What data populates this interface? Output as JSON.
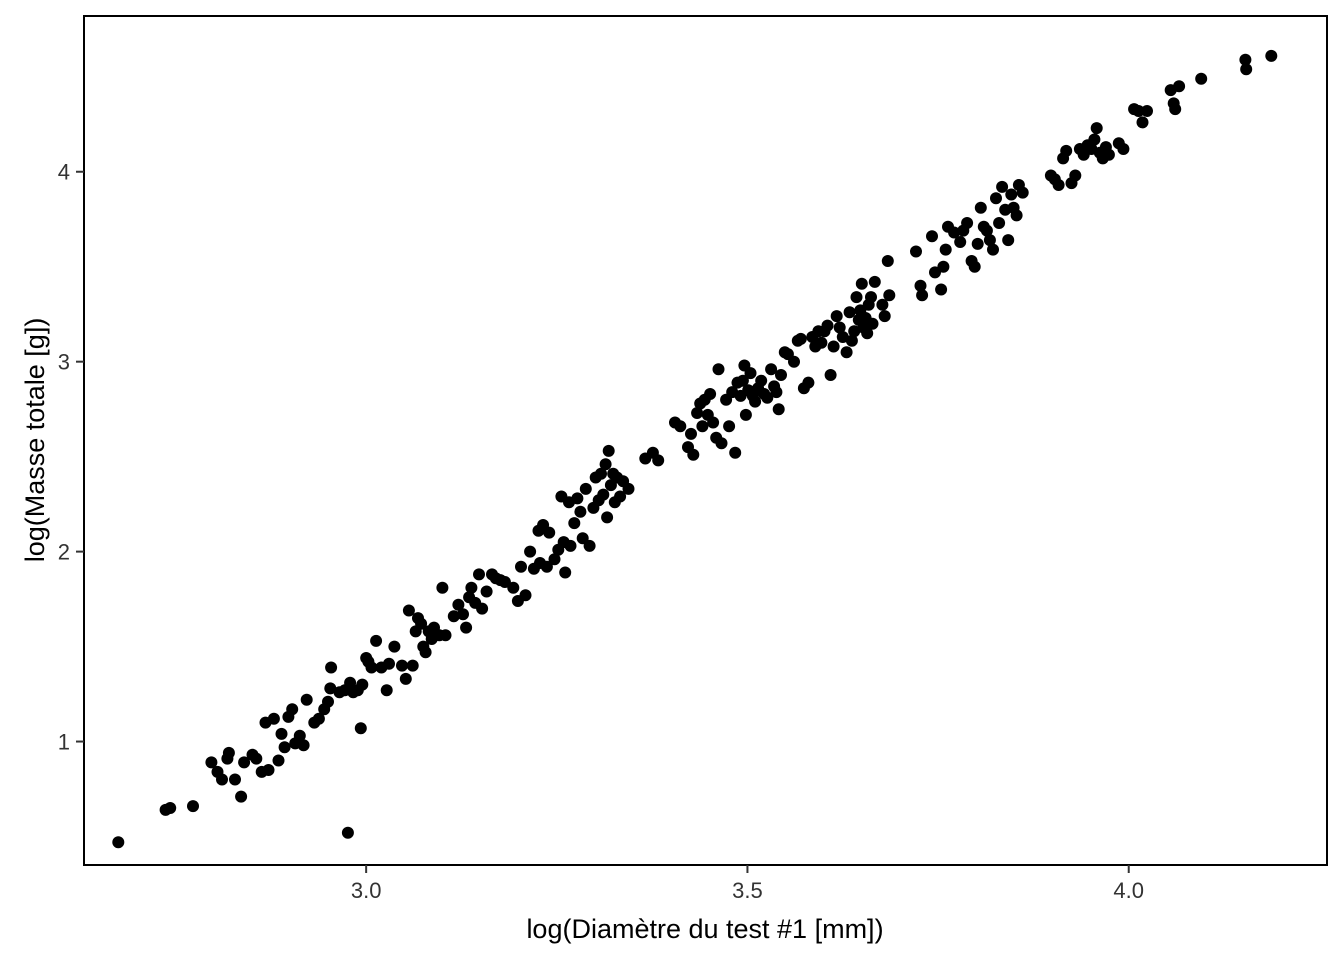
{
  "chart_data": {
    "type": "scatter",
    "title": "",
    "xlabel": "log(Diamètre du test #1  [mm])",
    "ylabel": "log(Masse totale  [g])",
    "xlim": [
      2.63,
      4.26
    ],
    "ylim": [
      0.35,
      4.82
    ],
    "x_ticks": [
      3.0,
      3.5,
      4.0
    ],
    "x_tick_labels": [
      "3.0",
      "3.5",
      "4.0"
    ],
    "y_ticks": [
      1,
      2,
      3,
      4
    ],
    "y_tick_labels": [
      "1",
      "2",
      "3",
      "4"
    ],
    "grid": false,
    "legend": "none",
    "point_color": "#000000",
    "points": [
      [
        2.675,
        0.47
      ],
      [
        2.737,
        0.64
      ],
      [
        2.743,
        0.65
      ],
      [
        2.773,
        0.66
      ],
      [
        2.797,
        0.89
      ],
      [
        2.805,
        0.84
      ],
      [
        2.811,
        0.8
      ],
      [
        2.818,
        0.91
      ],
      [
        2.82,
        0.94
      ],
      [
        2.828,
        0.8
      ],
      [
        2.836,
        0.71
      ],
      [
        2.84,
        0.89
      ],
      [
        2.851,
        0.93
      ],
      [
        2.856,
        0.91
      ],
      [
        2.863,
        0.84
      ],
      [
        2.868,
        1.1
      ],
      [
        2.872,
        0.85
      ],
      [
        2.879,
        1.12
      ],
      [
        2.885,
        0.9
      ],
      [
        2.889,
        1.04
      ],
      [
        2.893,
        0.97
      ],
      [
        2.898,
        1.13
      ],
      [
        2.903,
        1.17
      ],
      [
        2.907,
        0.99
      ],
      [
        2.913,
        1.03
      ],
      [
        2.918,
        0.98
      ],
      [
        2.922,
        1.22
      ],
      [
        2.932,
        1.1
      ],
      [
        2.938,
        1.12
      ],
      [
        2.945,
        1.17
      ],
      [
        2.95,
        1.21
      ],
      [
        2.953,
        1.28
      ],
      [
        2.954,
        1.39
      ],
      [
        2.965,
        1.26
      ],
      [
        2.972,
        1.27
      ],
      [
        2.979,
        1.31
      ],
      [
        2.983,
        1.26
      ],
      [
        2.989,
        1.27
      ],
      [
        2.995,
        1.3
      ],
      [
        3.0,
        1.44
      ],
      [
        3.003,
        1.42
      ],
      [
        3.007,
        1.39
      ],
      [
        3.013,
        1.53
      ],
      [
        3.02,
        1.39
      ],
      [
        3.027,
        1.27
      ],
      [
        3.03,
        1.41
      ],
      [
        3.037,
        1.5
      ],
      [
        3.047,
        1.4
      ],
      [
        3.052,
        1.33
      ],
      [
        3.056,
        1.69
      ],
      [
        3.061,
        1.4
      ],
      [
        3.065,
        1.58
      ],
      [
        3.068,
        1.65
      ],
      [
        3.072,
        1.62
      ],
      [
        3.075,
        1.5
      ],
      [
        3.078,
        1.47
      ],
      [
        3.082,
        1.58
      ],
      [
        3.086,
        1.54
      ],
      [
        3.089,
        1.6
      ],
      [
        3.096,
        1.56
      ],
      [
        3.1,
        1.81
      ],
      [
        3.104,
        1.56
      ],
      [
        3.115,
        1.66
      ],
      [
        3.121,
        1.72
      ],
      [
        3.127,
        1.67
      ],
      [
        3.131,
        1.6
      ],
      [
        3.135,
        1.76
      ],
      [
        3.138,
        1.81
      ],
      [
        3.143,
        1.73
      ],
      [
        3.148,
        1.88
      ],
      [
        3.152,
        1.7
      ],
      [
        3.158,
        1.79
      ],
      [
        3.165,
        1.88
      ],
      [
        3.17,
        1.86
      ],
      [
        3.176,
        1.85
      ],
      [
        3.182,
        1.84
      ],
      [
        3.193,
        1.81
      ],
      [
        3.199,
        1.74
      ],
      [
        3.203,
        1.92
      ],
      [
        3.209,
        1.77
      ],
      [
        3.215,
        2.0
      ],
      [
        3.22,
        1.91
      ],
      [
        3.226,
        2.11
      ],
      [
        3.228,
        1.94
      ],
      [
        3.232,
        2.14
      ],
      [
        3.237,
        1.92
      ],
      [
        3.24,
        2.1
      ],
      [
        3.247,
        1.96
      ],
      [
        3.252,
        2.01
      ],
      [
        3.256,
        2.29
      ],
      [
        3.259,
        2.05
      ],
      [
        3.261,
        1.89
      ],
      [
        3.266,
        2.26
      ],
      [
        3.268,
        2.03
      ],
      [
        3.273,
        2.15
      ],
      [
        3.277,
        2.28
      ],
      [
        3.281,
        2.21
      ],
      [
        3.284,
        2.07
      ],
      [
        3.288,
        2.33
      ],
      [
        3.293,
        2.03
      ],
      [
        3.298,
        2.23
      ],
      [
        3.301,
        2.39
      ],
      [
        3.305,
        2.27
      ],
      [
        3.308,
        2.41
      ],
      [
        3.311,
        2.3
      ],
      [
        3.314,
        2.46
      ],
      [
        3.316,
        2.18
      ],
      [
        3.318,
        2.53
      ],
      [
        3.321,
        2.35
      ],
      [
        3.324,
        2.41
      ],
      [
        3.326,
        2.26
      ],
      [
        3.329,
        2.39
      ],
      [
        3.333,
        2.29
      ],
      [
        3.337,
        2.37
      ],
      [
        3.344,
        2.33
      ],
      [
        3.366,
        2.49
      ],
      [
        3.376,
        2.52
      ],
      [
        3.383,
        2.48
      ],
      [
        3.405,
        2.68
      ],
      [
        3.412,
        2.66
      ],
      [
        3.422,
        2.55
      ],
      [
        3.426,
        2.62
      ],
      [
        3.429,
        2.51
      ],
      [
        3.434,
        2.73
      ],
      [
        3.438,
        2.78
      ],
      [
        3.441,
        2.66
      ],
      [
        3.444,
        2.8
      ],
      [
        3.448,
        2.72
      ],
      [
        3.451,
        2.83
      ],
      [
        3.455,
        2.68
      ],
      [
        3.459,
        2.6
      ],
      [
        3.462,
        2.96
      ],
      [
        3.466,
        2.57
      ],
      [
        3.472,
        2.8
      ],
      [
        3.476,
        2.66
      ],
      [
        3.48,
        2.84
      ],
      [
        3.484,
        2.52
      ],
      [
        3.487,
        2.89
      ],
      [
        3.491,
        2.82
      ],
      [
        3.494,
        2.9
      ],
      [
        3.496,
        2.98
      ],
      [
        3.498,
        2.72
      ],
      [
        3.501,
        2.85
      ],
      [
        3.504,
        2.94
      ],
      [
        3.507,
        2.82
      ],
      [
        3.51,
        2.79
      ],
      [
        3.514,
        2.86
      ],
      [
        3.518,
        2.9
      ],
      [
        3.522,
        2.83
      ],
      [
        3.526,
        2.81
      ],
      [
        3.531,
        2.96
      ],
      [
        3.535,
        2.87
      ],
      [
        3.538,
        2.84
      ],
      [
        3.541,
        2.75
      ],
      [
        3.544,
        2.93
      ],
      [
        3.549,
        3.05
      ],
      [
        3.553,
        3.04
      ],
      [
        3.561,
        3.0
      ],
      [
        3.566,
        3.11
      ],
      [
        3.57,
        3.12
      ],
      [
        3.574,
        2.86
      ],
      [
        3.58,
        2.89
      ],
      [
        3.585,
        3.13
      ],
      [
        3.589,
        3.08
      ],
      [
        3.593,
        3.16
      ],
      [
        3.597,
        3.1
      ],
      [
        3.601,
        3.16
      ],
      [
        3.605,
        3.19
      ],
      [
        3.609,
        2.93
      ],
      [
        3.613,
        3.08
      ],
      [
        3.617,
        3.24
      ],
      [
        3.621,
        3.18
      ],
      [
        3.625,
        3.13
      ],
      [
        3.63,
        3.05
      ],
      [
        3.634,
        3.26
      ],
      [
        3.637,
        3.11
      ],
      [
        3.64,
        3.16
      ],
      [
        3.643,
        3.34
      ],
      [
        3.646,
        3.22
      ],
      [
        3.648,
        3.27
      ],
      [
        3.65,
        3.41
      ],
      [
        3.652,
        3.18
      ],
      [
        3.655,
        3.23
      ],
      [
        3.657,
        3.15
      ],
      [
        3.659,
        3.3
      ],
      [
        3.662,
        3.34
      ],
      [
        3.664,
        3.2
      ],
      [
        3.667,
        3.42
      ],
      [
        3.677,
        3.3
      ],
      [
        3.68,
        3.24
      ],
      [
        3.684,
        3.53
      ],
      [
        3.686,
        3.35
      ],
      [
        3.721,
        3.58
      ],
      [
        3.727,
        3.4
      ],
      [
        3.729,
        3.35
      ],
      [
        3.742,
        3.66
      ],
      [
        3.746,
        3.47
      ],
      [
        3.754,
        3.38
      ],
      [
        3.757,
        3.5
      ],
      [
        3.76,
        3.59
      ],
      [
        3.763,
        3.71
      ],
      [
        3.771,
        3.68
      ],
      [
        3.779,
        3.63
      ],
      [
        3.783,
        3.69
      ],
      [
        3.788,
        3.73
      ],
      [
        3.794,
        3.53
      ],
      [
        3.798,
        3.5
      ],
      [
        3.802,
        3.62
      ],
      [
        3.806,
        3.81
      ],
      [
        3.81,
        3.71
      ],
      [
        3.814,
        3.69
      ],
      [
        3.818,
        3.64
      ],
      [
        3.822,
        3.59
      ],
      [
        3.826,
        3.86
      ],
      [
        3.83,
        3.73
      ],
      [
        3.834,
        3.92
      ],
      [
        3.838,
        3.8
      ],
      [
        3.842,
        3.64
      ],
      [
        3.846,
        3.88
      ],
      [
        3.849,
        3.81
      ],
      [
        3.853,
        3.77
      ],
      [
        3.856,
        3.93
      ],
      [
        3.861,
        3.89
      ],
      [
        3.898,
        3.98
      ],
      [
        3.903,
        3.96
      ],
      [
        3.908,
        3.93
      ],
      [
        3.914,
        4.07
      ],
      [
        3.918,
        4.11
      ],
      [
        3.925,
        3.94
      ],
      [
        3.93,
        3.98
      ],
      [
        3.936,
        4.12
      ],
      [
        3.941,
        4.09
      ],
      [
        3.946,
        4.14
      ],
      [
        3.951,
        4.12
      ],
      [
        3.955,
        4.17
      ],
      [
        3.958,
        4.23
      ],
      [
        3.962,
        4.1
      ],
      [
        3.966,
        4.07
      ],
      [
        3.97,
        4.13
      ],
      [
        3.974,
        4.09
      ],
      [
        3.987,
        4.15
      ],
      [
        3.993,
        4.12
      ],
      [
        4.007,
        4.33
      ],
      [
        4.013,
        4.32
      ],
      [
        4.018,
        4.26
      ],
      [
        4.024,
        4.32
      ],
      [
        4.055,
        4.43
      ],
      [
        4.059,
        4.36
      ],
      [
        4.061,
        4.33
      ],
      [
        4.066,
        4.45
      ],
      [
        4.095,
        4.49
      ],
      [
        4.153,
        4.59
      ],
      [
        4.154,
        4.54
      ],
      [
        4.187,
        4.61
      ],
      [
        2.976,
        0.52
      ],
      [
        2.993,
        1.07
      ]
    ]
  }
}
